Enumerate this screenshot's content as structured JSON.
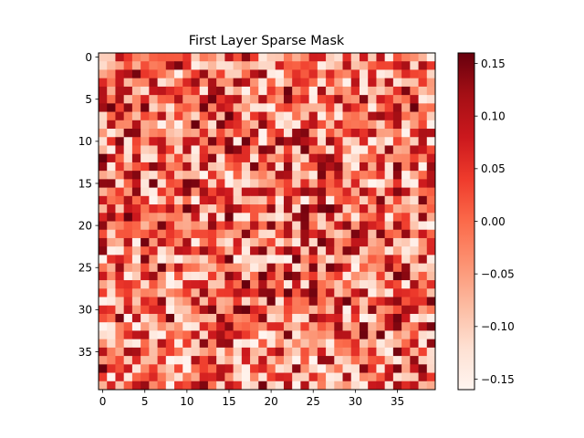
{
  "chart_data": {
    "type": "heatmap",
    "title": "First Layer Sparse Mask",
    "xlabel": "",
    "ylabel": "",
    "rows": 40,
    "cols": 40,
    "colormap": "Reds",
    "value_range": [
      -0.16,
      0.16
    ],
    "xlim": [
      -0.5,
      39.5
    ],
    "ylim": [
      39.5,
      -0.5
    ],
    "x_ticks": [
      0,
      5,
      10,
      15,
      20,
      25,
      30,
      35
    ],
    "y_ticks": [
      0,
      5,
      10,
      15,
      20,
      25,
      30,
      35
    ],
    "colorbar": {
      "range": [
        -0.16,
        0.16
      ],
      "ticks": [
        {
          "value": 0.15,
          "label": "0.15"
        },
        {
          "value": 0.1,
          "label": "0.10"
        },
        {
          "value": 0.05,
          "label": "0.05"
        },
        {
          "value": 0.0,
          "label": "0.00"
        },
        {
          "value": -0.05,
          "label": "−0.05"
        },
        {
          "value": -0.1,
          "label": "−0.10"
        },
        {
          "value": -0.15,
          "label": "−0.15"
        }
      ]
    },
    "grid": false,
    "legend": "none",
    "seed": 1337
  }
}
